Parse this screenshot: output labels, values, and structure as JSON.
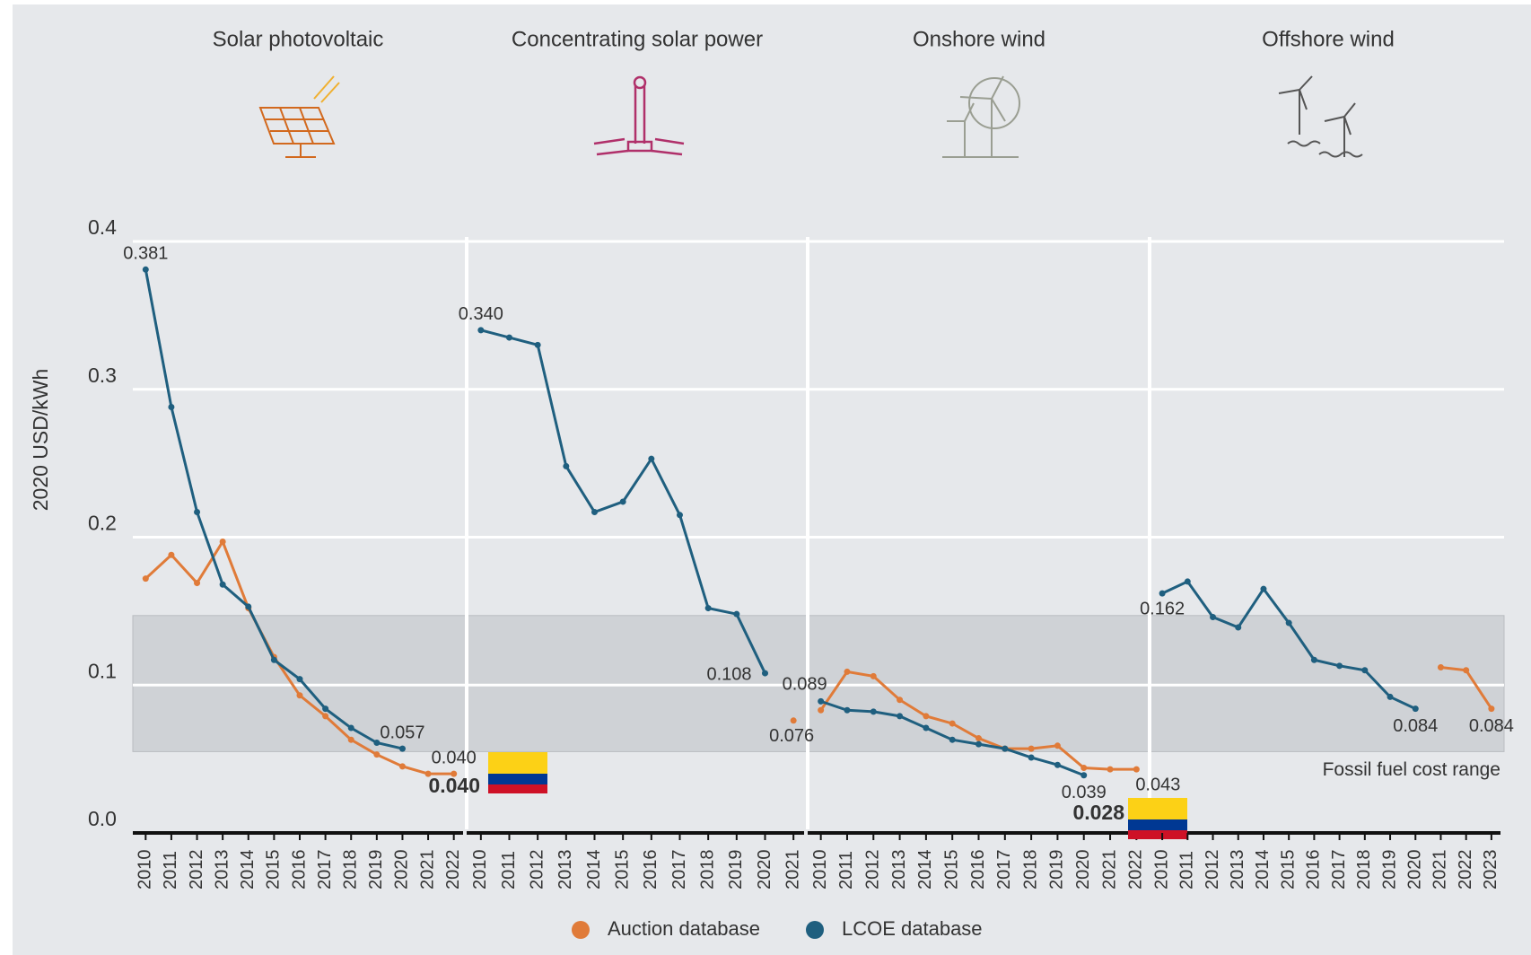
{
  "chart_data": [
    {
      "type": "line",
      "title": "Solar photovoltaic",
      "y_label": "2020 USD/kWh",
      "x": [
        "2010",
        "2011",
        "2012",
        "2013",
        "2014",
        "2015",
        "2016",
        "2017",
        "2018",
        "2019",
        "2020",
        "2021",
        "2022"
      ],
      "ylim": [
        0,
        0.4
      ],
      "yticks": [
        {
          "value": 0,
          "label": "0.0"
        },
        0.1,
        0.2,
        0.3,
        0.4
      ],
      "grid": true,
      "band": [
        0.055,
        0.147
      ],
      "series": [
        {
          "name": "Auction database",
          "color": "#e07b39",
          "values": [
            0.172,
            0.188,
            0.169,
            0.197,
            0.152,
            0.119,
            0.093,
            0.079,
            0.063,
            0.053,
            0.045,
            0.04,
            0.04
          ],
          "value_labels": [
            null,
            null,
            null,
            null,
            null,
            null,
            null,
            null,
            null,
            null,
            null,
            null,
            "0.040"
          ]
        },
        {
          "name": "LCOE database",
          "color": "#1f5f7f",
          "values": [
            0.381,
            0.288,
            0.217,
            0.168,
            0.153,
            0.117,
            0.104,
            0.084,
            0.071,
            0.061,
            0.057,
            null,
            null
          ],
          "value_labels": [
            "0.381",
            null,
            null,
            null,
            null,
            null,
            null,
            null,
            null,
            null,
            "0.057",
            null,
            null
          ]
        }
      ],
      "annotation": {
        "value": 0.04,
        "label": "0.040",
        "color": "#0a7a35"
      }
    },
    {
      "type": "line",
      "title": "Concentrating solar power",
      "x": [
        "2010",
        "2011",
        "2012",
        "2013",
        "2014",
        "2015",
        "2016",
        "2017",
        "2018",
        "2019",
        "2020",
        "2021"
      ],
      "ylim": [
        0,
        0.4
      ],
      "band": [
        0.055,
        0.147
      ],
      "series": [
        {
          "name": "Auction database",
          "color": "#e07b39",
          "values": [
            null,
            null,
            null,
            null,
            null,
            null,
            null,
            null,
            null,
            null,
            null,
            0.076
          ],
          "value_labels": [
            null,
            null,
            null,
            null,
            null,
            null,
            null,
            null,
            null,
            null,
            null,
            "0.076"
          ]
        },
        {
          "name": "LCOE database",
          "color": "#1f5f7f",
          "values": [
            0.34,
            0.335,
            0.33,
            0.248,
            0.217,
            0.224,
            0.253,
            0.215,
            0.152,
            0.148,
            0.108,
            null
          ],
          "value_labels": [
            "0.340",
            null,
            null,
            null,
            null,
            null,
            null,
            null,
            null,
            null,
            "0.108",
            null
          ]
        }
      ]
    },
    {
      "type": "line",
      "title": "Onshore wind",
      "x": [
        "2010",
        "2011",
        "2012",
        "2013",
        "2014",
        "2015",
        "2016",
        "2017",
        "2018",
        "2019",
        "2020",
        "2021",
        "2022"
      ],
      "ylim": [
        0,
        0.4
      ],
      "band": [
        0.055,
        0.147
      ],
      "series": [
        {
          "name": "Auction database",
          "color": "#e07b39",
          "values": [
            0.083,
            0.109,
            0.106,
            0.09,
            0.079,
            0.074,
            0.064,
            0.057,
            0.057,
            0.059,
            0.044,
            0.043,
            0.043
          ],
          "value_labels": [
            null,
            null,
            null,
            null,
            null,
            null,
            null,
            null,
            null,
            null,
            null,
            null,
            "0.043"
          ]
        },
        {
          "name": "LCOE database",
          "color": "#1f5f7f",
          "values": [
            0.089,
            0.083,
            0.082,
            0.079,
            0.071,
            0.063,
            0.06,
            0.057,
            0.051,
            0.046,
            0.039,
            null,
            null
          ],
          "value_labels": [
            "0.089",
            null,
            null,
            null,
            null,
            null,
            null,
            null,
            null,
            null,
            "0.039",
            null,
            null
          ]
        }
      ],
      "annotation": {
        "value": 0.028,
        "label": "0.028",
        "color": "#12a4e0"
      }
    },
    {
      "type": "line",
      "title": "Offshore wind",
      "x": [
        "2010",
        "2011",
        "2012",
        "2013",
        "2014",
        "2015",
        "2016",
        "2017",
        "2018",
        "2019",
        "2020",
        "2021",
        "2022",
        "2023"
      ],
      "ylim": [
        0,
        0.4
      ],
      "band": [
        0.055,
        0.147
      ],
      "band_label": "Fossil fuel cost range",
      "series": [
        {
          "name": "Auction database",
          "color": "#e07b39",
          "values": [
            null,
            null,
            null,
            null,
            null,
            null,
            null,
            null,
            null,
            null,
            null,
            0.112,
            0.11,
            0.084
          ],
          "value_labels": [
            null,
            null,
            null,
            null,
            null,
            null,
            null,
            null,
            null,
            null,
            null,
            null,
            null,
            "0.084"
          ]
        },
        {
          "name": "LCOE database",
          "color": "#1f5f7f",
          "values": [
            0.162,
            0.17,
            0.146,
            0.139,
            0.165,
            0.142,
            0.117,
            0.113,
            0.11,
            0.092,
            0.084,
            null,
            null,
            null
          ],
          "value_labels": [
            "0.162",
            null,
            null,
            null,
            null,
            null,
            null,
            null,
            null,
            null,
            "0.084",
            null,
            null,
            null
          ]
        }
      ]
    }
  ]
}
